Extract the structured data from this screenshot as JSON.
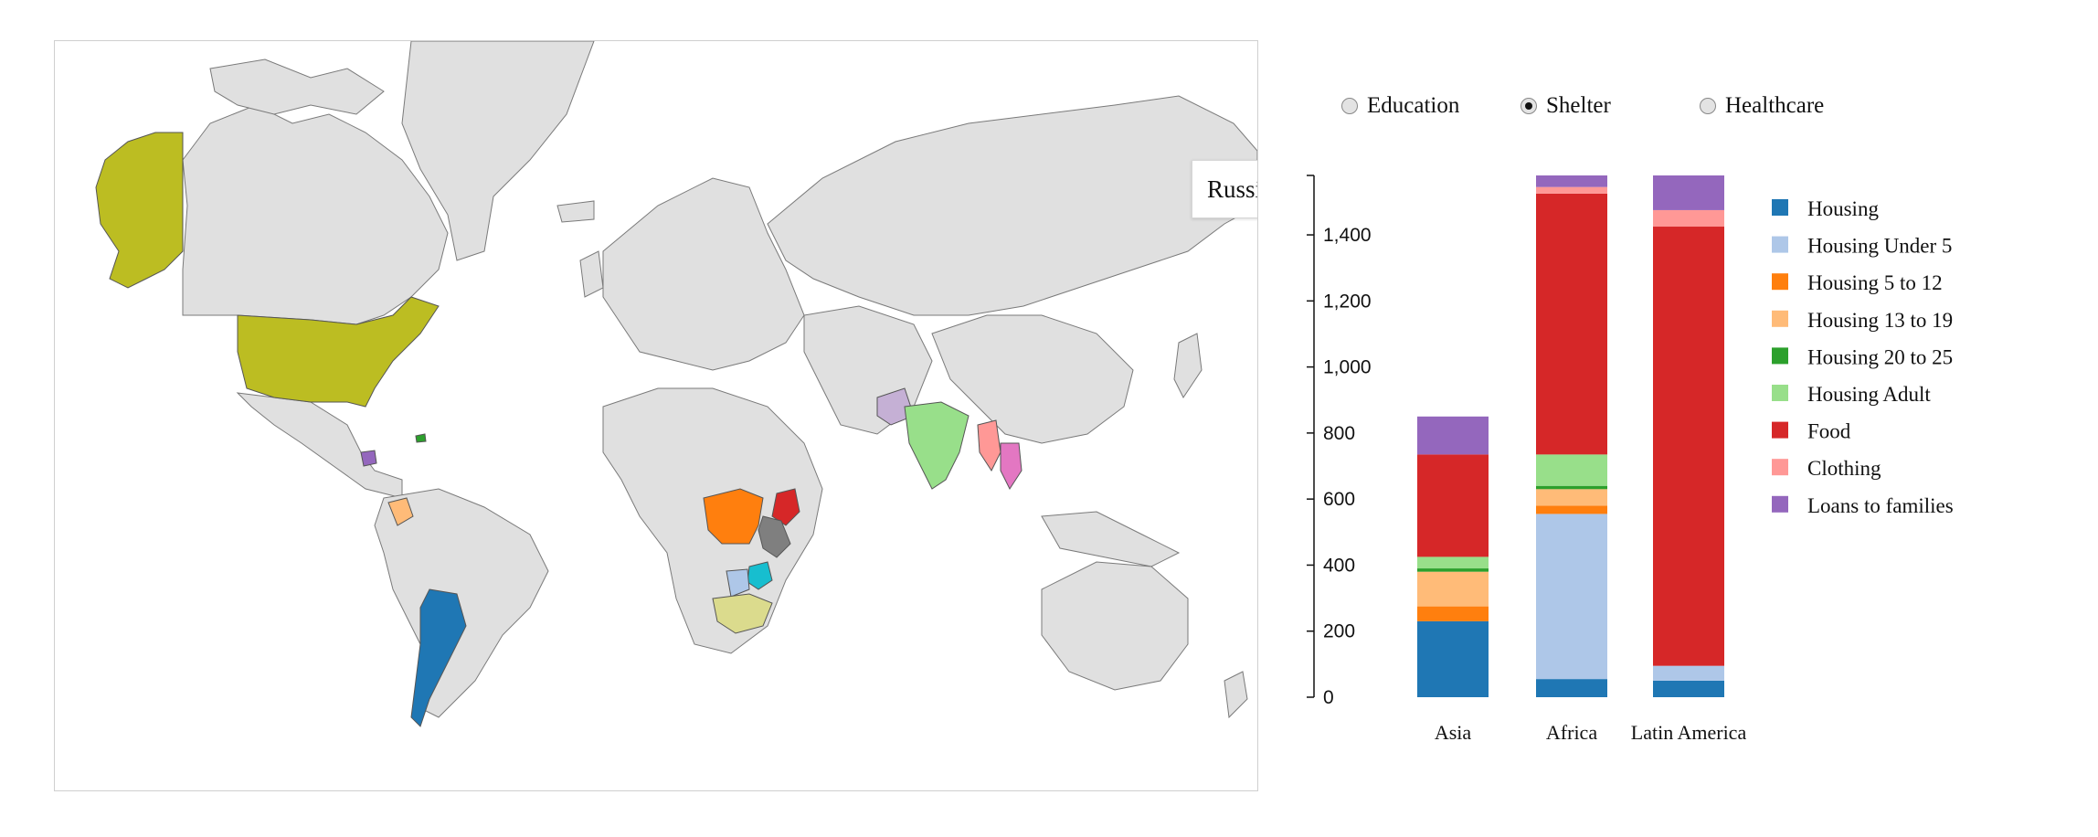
{
  "tooltip": {
    "country": "Russia"
  },
  "radio_options": [
    {
      "label": "Education",
      "checked": false
    },
    {
      "label": "Shelter",
      "checked": true
    },
    {
      "label": "Healthcare",
      "checked": false
    }
  ],
  "map": {
    "land_color": "#e0e0e0",
    "highlighted_countries": [
      {
        "name": "Alaska",
        "color": "#bcbd22"
      },
      {
        "name": "United States",
        "color": "#bcbd22"
      },
      {
        "name": "Argentina",
        "color": "#1f77b4"
      },
      {
        "name": "Colombia",
        "color": "#ffbb78"
      },
      {
        "name": "DR Congo",
        "color": "#ff7f0e"
      },
      {
        "name": "Kenya",
        "color": "#d62728"
      },
      {
        "name": "Tanzania",
        "color": "#7f7f7f"
      },
      {
        "name": "Zimbabwe",
        "color": "#17becf"
      },
      {
        "name": "Botswana",
        "color": "#aec7e8"
      },
      {
        "name": "South Africa",
        "color": "#dbdb8d"
      },
      {
        "name": "India",
        "color": "#98df8a"
      },
      {
        "name": "Pakistan",
        "color": "#c5b0d5"
      },
      {
        "name": "Myanmar",
        "color": "#ff9896"
      },
      {
        "name": "Thailand",
        "color": "#e377c2"
      },
      {
        "name": "Guatemala",
        "color": "#9467bd"
      },
      {
        "name": "Haiti",
        "color": "#2ca02c"
      }
    ]
  },
  "chart_data": {
    "type": "bar",
    "stacked": true,
    "categories": [
      "Asia",
      "Africa",
      "Latin America"
    ],
    "ylim": [
      0,
      1580
    ],
    "y_ticks": [
      "0",
      "200",
      "400",
      "600",
      "800",
      "1,000",
      "1,200",
      "1,400"
    ],
    "y_tick_values": [
      0,
      200,
      400,
      600,
      800,
      1000,
      1200,
      1400
    ],
    "series": [
      {
        "name": "Housing",
        "color": "#1f77b4",
        "values": [
          230,
          55,
          50
        ]
      },
      {
        "name": "Housing Under 5",
        "color": "#aec7e8",
        "values": [
          0,
          500,
          45
        ]
      },
      {
        "name": "Housing 5 to 12",
        "color": "#ff7f0e",
        "values": [
          45,
          25,
          0
        ]
      },
      {
        "name": "Housing 13 to 19",
        "color": "#ffbb78",
        "values": [
          105,
          50,
          0
        ]
      },
      {
        "name": "Housing 20 to 25",
        "color": "#2ca02c",
        "values": [
          10,
          10,
          0
        ]
      },
      {
        "name": "Housing Adult",
        "color": "#98df8a",
        "values": [
          35,
          95,
          0
        ]
      },
      {
        "name": "Food",
        "color": "#d62728",
        "values": [
          310,
          790,
          1330
        ]
      },
      {
        "name": "Clothing",
        "color": "#ff9896",
        "values": [
          0,
          20,
          50
        ]
      },
      {
        "name": "Loans to families",
        "color": "#9467bd",
        "values": [
          115,
          35,
          105
        ]
      }
    ],
    "legend_position": "right"
  }
}
